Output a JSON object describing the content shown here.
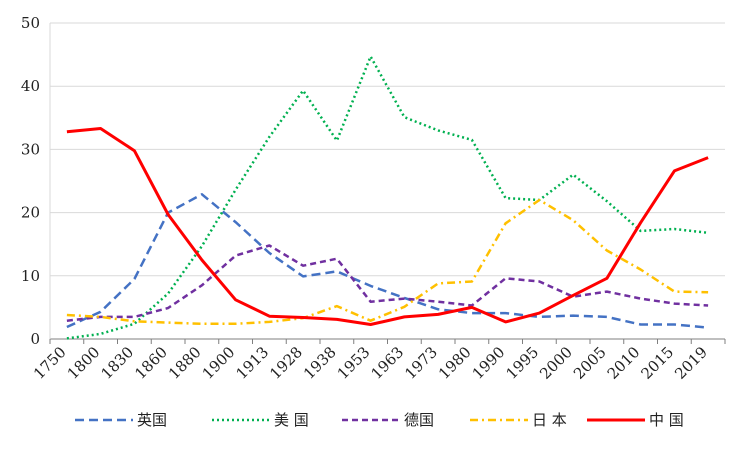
{
  "chart_data": {
    "type": "line",
    "title": "",
    "xlabel": "",
    "ylabel": "",
    "ylim": [
      0,
      50
    ],
    "yticks": [
      0,
      10,
      20,
      30,
      40,
      50
    ],
    "grid": "horizontal",
    "legend_position": "bottom",
    "categories": [
      "1750",
      "1800",
      "1830",
      "1860",
      "1880",
      "1900",
      "1913",
      "1928",
      "1938",
      "1953",
      "1963",
      "1973",
      "1980",
      "1990",
      "1995",
      "2000",
      "2005",
      "2010",
      "2015",
      "2019"
    ],
    "series": [
      {
        "name": "英国",
        "color": "#4472C4",
        "dash": "long-dash",
        "values": [
          1.9,
          4.3,
          9.5,
          20.0,
          22.9,
          18.5,
          13.6,
          9.9,
          10.7,
          8.4,
          6.5,
          4.7,
          4.1,
          4.1,
          3.5,
          3.7,
          3.5,
          2.3,
          2.3,
          1.8
        ]
      },
      {
        "name": "美 国",
        "color": "#00B050",
        "dash": "dotted",
        "values": [
          0.1,
          0.8,
          2.4,
          7.2,
          14.7,
          23.6,
          32.0,
          39.3,
          31.4,
          44.7,
          35.1,
          33.0,
          31.5,
          22.3,
          22.0,
          26.0,
          21.8,
          17.1,
          17.4,
          16.8
        ]
      },
      {
        "name": "德国",
        "color": "#7030A0",
        "dash": "dash",
        "values": [
          2.9,
          3.5,
          3.5,
          4.9,
          8.5,
          13.2,
          14.8,
          11.6,
          12.7,
          5.9,
          6.4,
          5.9,
          5.3,
          9.6,
          9.1,
          6.7,
          7.5,
          6.4,
          5.6,
          5.3
        ]
      },
      {
        "name": "日 本",
        "color": "#FFC000",
        "dash": "dash-dot",
        "values": [
          3.8,
          3.5,
          2.8,
          2.6,
          2.4,
          2.4,
          2.7,
          3.3,
          5.2,
          2.9,
          5.1,
          8.8,
          9.1,
          18.3,
          22.0,
          18.8,
          14.0,
          11.0,
          7.5,
          7.4
        ]
      },
      {
        "name": "中 国",
        "color": "#FF0000",
        "dash": "solid",
        "values": [
          32.8,
          33.3,
          29.8,
          19.7,
          12.5,
          6.2,
          3.6,
          3.4,
          3.1,
          2.3,
          3.5,
          3.9,
          5.0,
          2.7,
          4.1,
          6.9,
          9.6,
          18.4,
          26.6,
          28.7
        ]
      }
    ]
  }
}
